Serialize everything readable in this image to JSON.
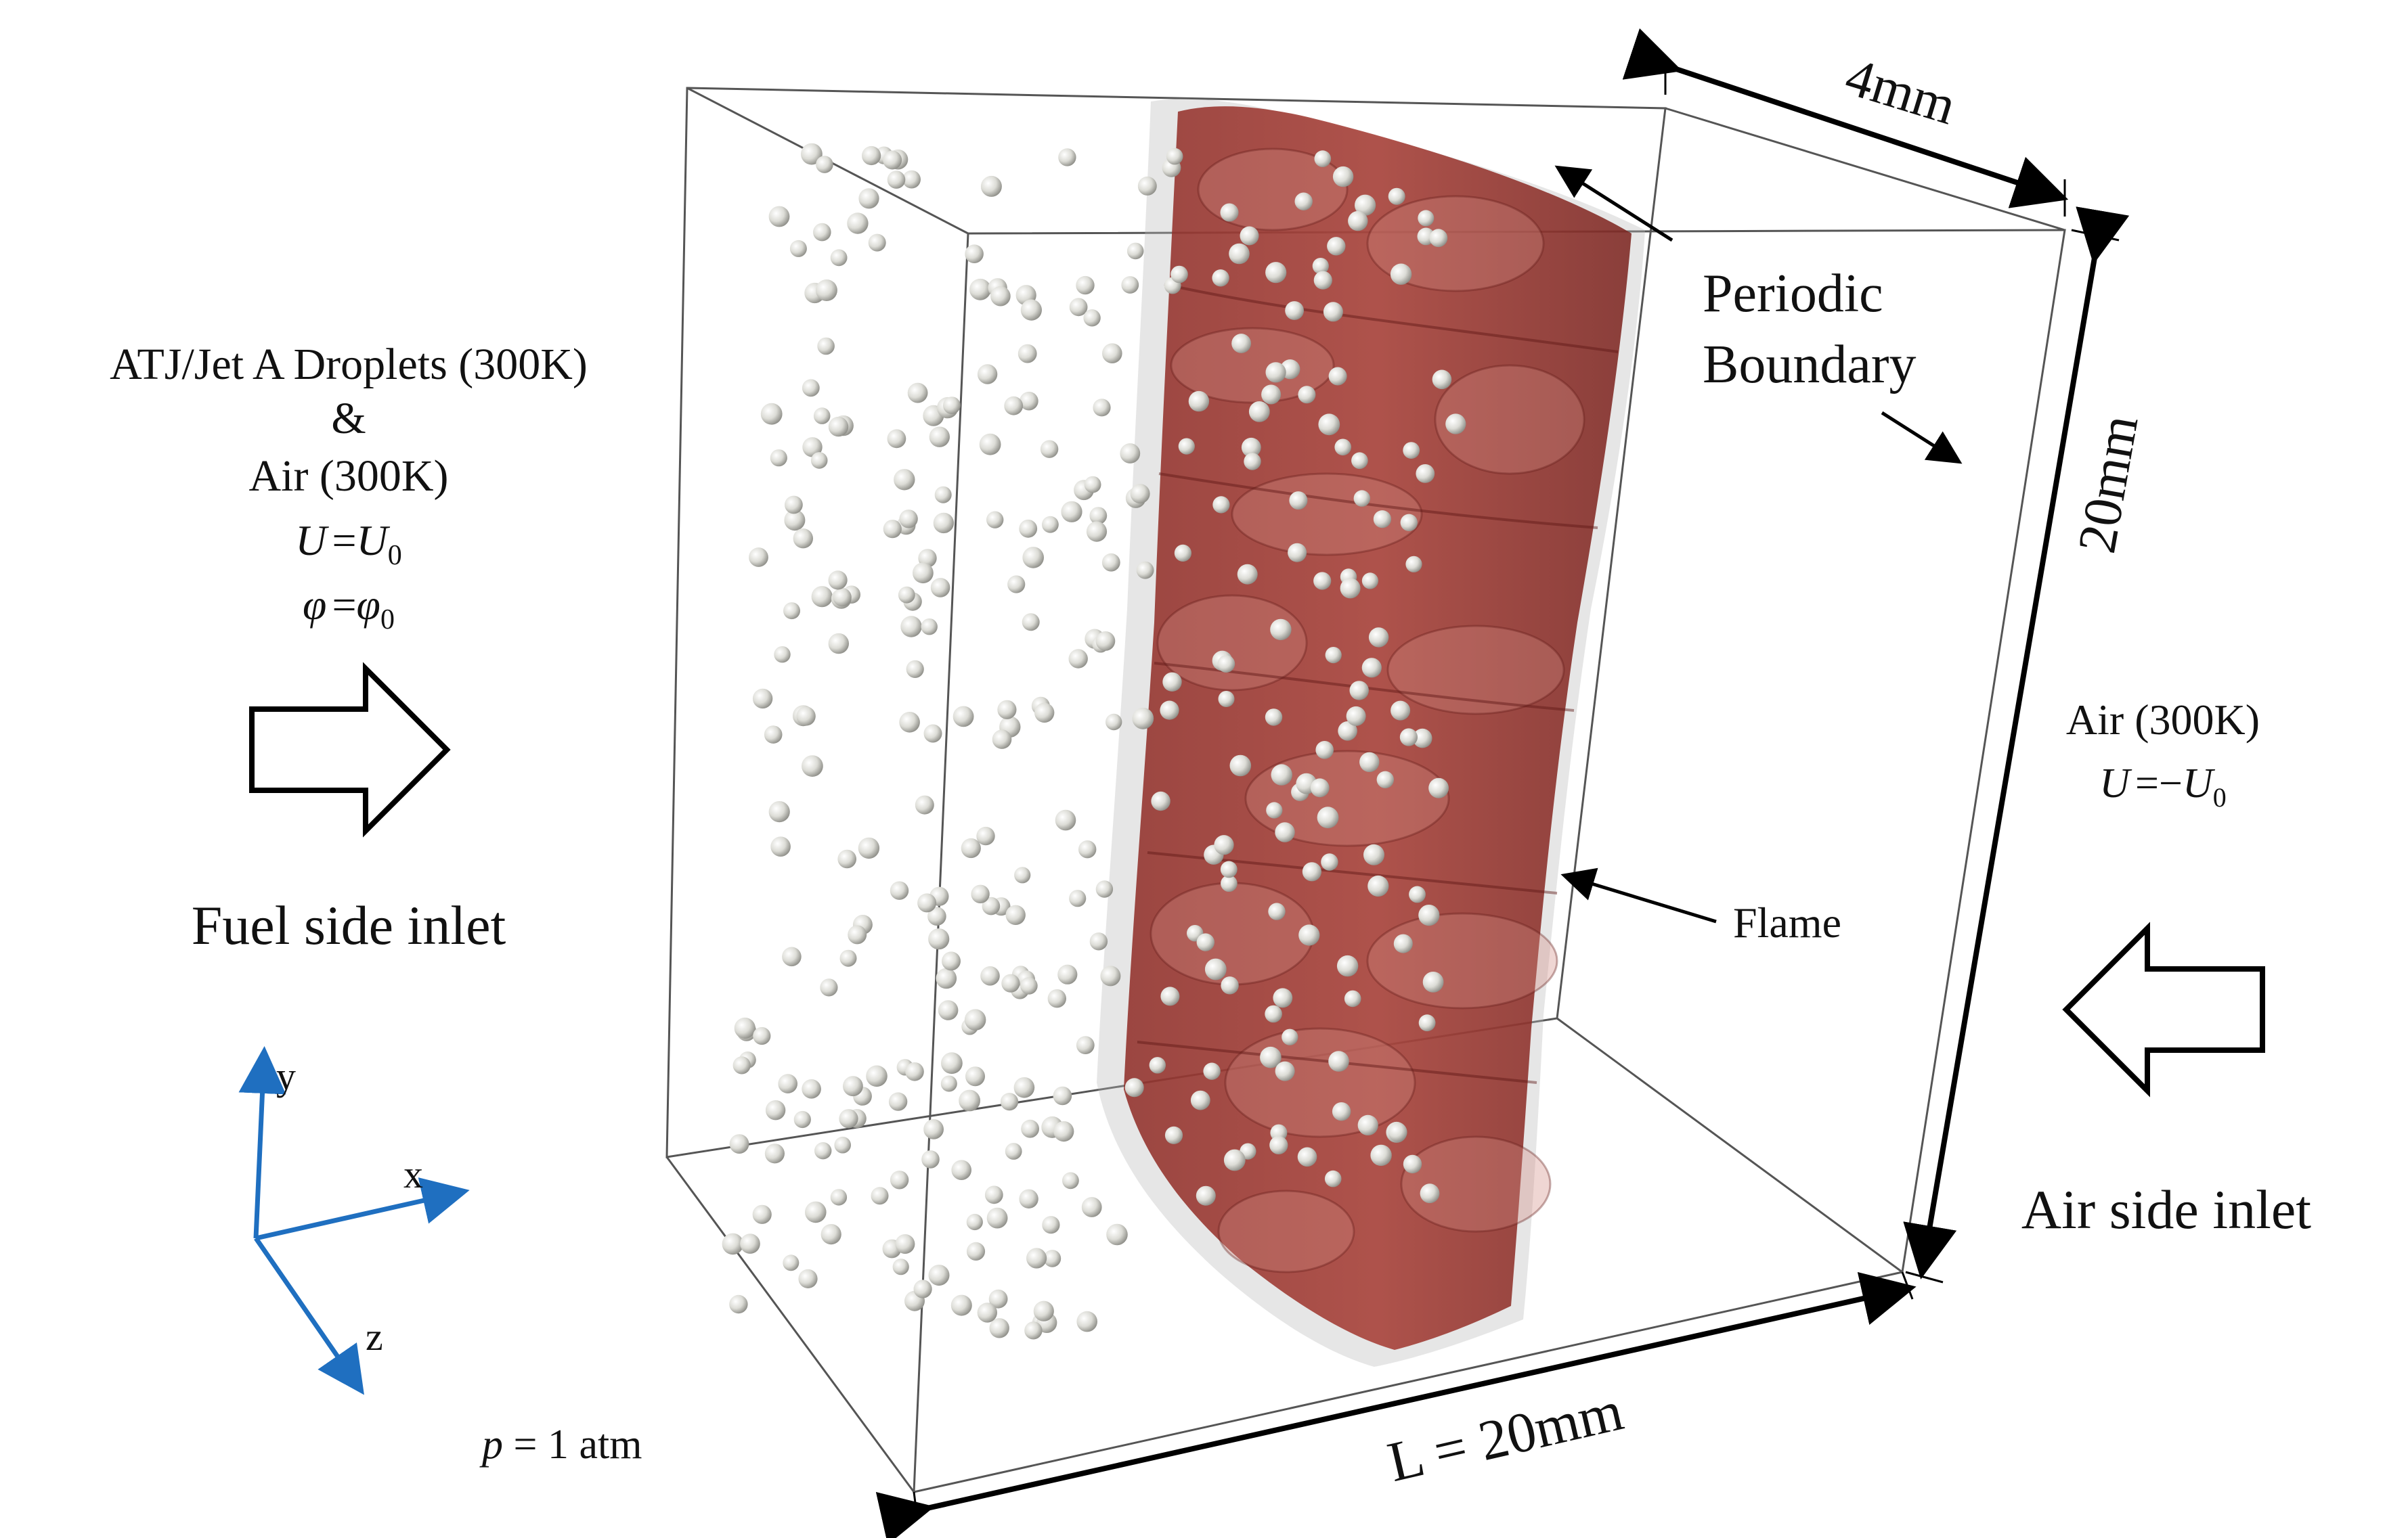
{
  "fuel_side": {
    "line1": "ATJ/Jet A Droplets (300K)",
    "line2": "&",
    "line3": "Air (300K)",
    "velocity": {
      "sym": "U",
      "eq": "=",
      "rhs": "U",
      "sub": "0"
    },
    "equivalence": {
      "sym": "φ",
      "eq": "=",
      "rhs": "φ",
      "sub": "0"
    },
    "inlet_label": "Fuel side inlet"
  },
  "air_side": {
    "line1": "Air (300K)",
    "velocity": {
      "sym": "U",
      "eq": "=−",
      "rhs": "U",
      "sub": "0"
    },
    "inlet_label": "Air side inlet"
  },
  "axes": {
    "x": "x",
    "y": "y",
    "z": "z"
  },
  "pressure": {
    "sym": "p",
    "rest": " = 1 atm"
  },
  "dimensions": {
    "depth": "4mm",
    "height": "20mm",
    "length": "L = 20mm"
  },
  "annotations": {
    "periodic_line1": "Periodic",
    "periodic_line2": "Boundary",
    "flame": "Flame"
  },
  "colors": {
    "flame": "#8e2a24",
    "flame_light": "#c46a62",
    "droplet": "#dcdcd6",
    "axis": "#1f6fc0",
    "box_edge": "#555555"
  }
}
